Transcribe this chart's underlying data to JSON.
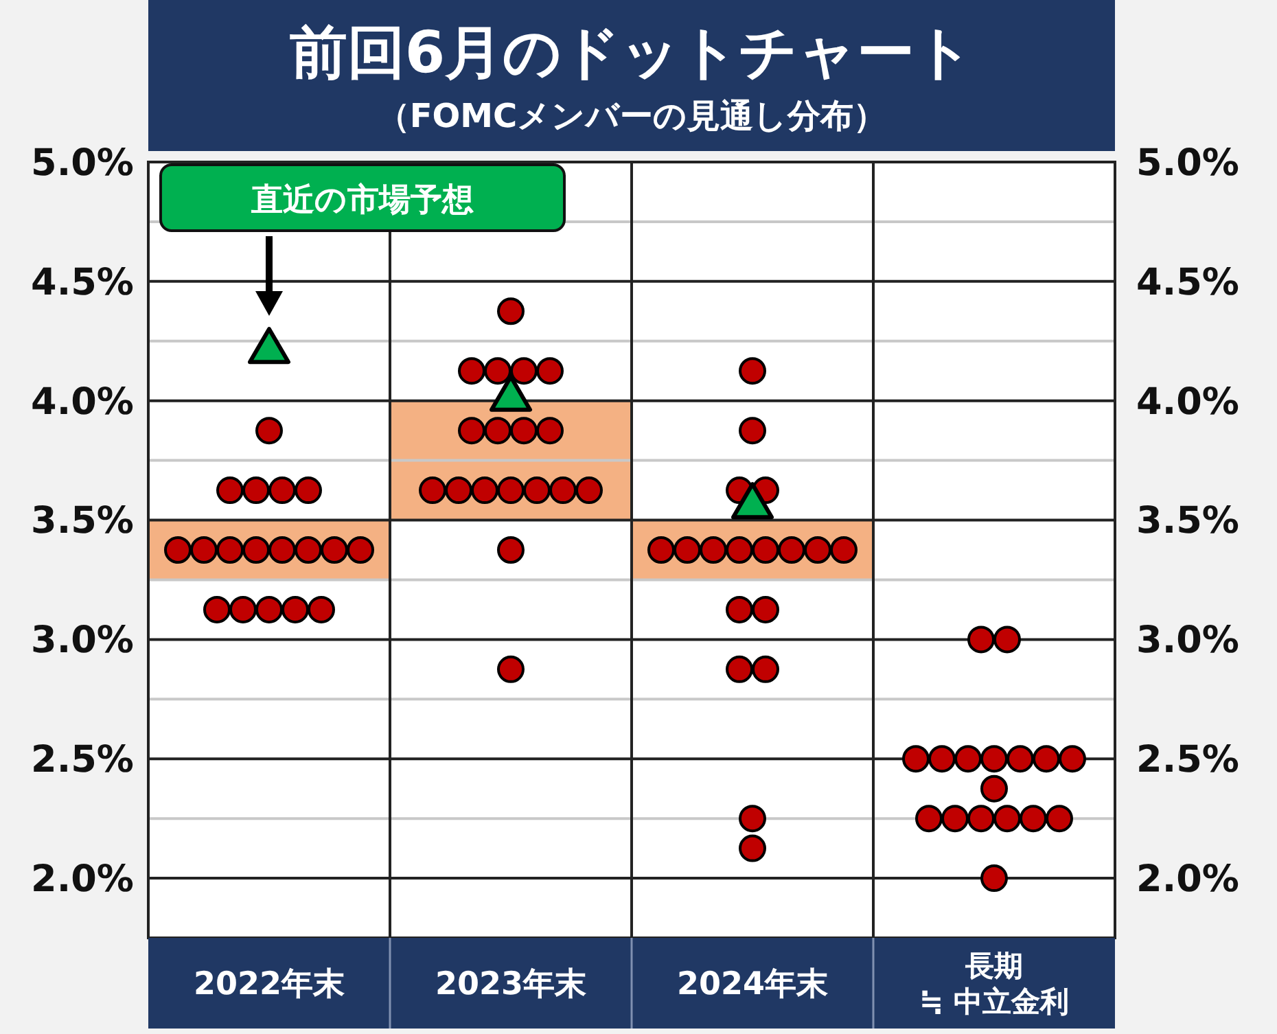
{
  "chart_data": {
    "type": "scatter",
    "title": "前回6月のドットチャート",
    "subtitle": "（FOMCメンバーの見通し分布）",
    "categories": [
      "2022年末",
      "2023年末",
      "2024年末",
      "長期\n≒ 中立金利"
    ],
    "series": [
      {
        "type": "bar",
        "color": "#f4b183",
        "base": [
          3.25,
          3.5,
          3.25,
          null
        ],
        "values": [
          0.25,
          0.5,
          0.25,
          null
        ]
      },
      {
        "marker": "circle",
        "color": "#c00000",
        "x": [
          "2022年末",
          "2022年末",
          "2022年末",
          "2022年末",
          "2022年末",
          "2022年末",
          "2022年末",
          "2022年末",
          "2022年末",
          "2022年末",
          "2022年末",
          "2022年末",
          "2022年末",
          "2022年末",
          "2022年末",
          "2022年末",
          "2022年末",
          "2022年末",
          "2023年末",
          "2023年末",
          "2023年末",
          "2023年末",
          "2023年末",
          "2023年末",
          "2023年末",
          "2023年末",
          "2023年末",
          "2023年末",
          "2023年末",
          "2023年末",
          "2023年末",
          "2023年末",
          "2023年末",
          "2023年末",
          "2023年末",
          "2023年末",
          "2024年末",
          "2024年末",
          "2024年末",
          "2024年末",
          "2024年末",
          "2024年末",
          "2024年末",
          "2024年末",
          "2024年末",
          "2024年末",
          "2024年末",
          "2024年末",
          "2024年末",
          "2024年末",
          "2024年末",
          "2024年末",
          "2024年末",
          "2024年末",
          "長期\n≒ 中立金利",
          "長期\n≒ 中立金利",
          "長期\n≒ 中立金利",
          "長期\n≒ 中立金利",
          "長期\n≒ 中立金利",
          "長期\n≒ 中立金利",
          "長期\n≒ 中立金利",
          "長期\n≒ 中立金利",
          "長期\n≒ 中立金利",
          "長期\n≒ 中立金利",
          "長期\n≒ 中立金利",
          "長期\n≒ 中立金利",
          "長期\n≒ 中立金利",
          "長期\n≒ 中立金利",
          "長期\n≒ 中立金利",
          "長期\n≒ 中立金利",
          "長期\n≒ 中立金利"
        ],
        "values": [
          3.875,
          3.625,
          3.625,
          3.625,
          3.625,
          3.375,
          3.375,
          3.375,
          3.375,
          3.375,
          3.375,
          3.375,
          3.375,
          3.125,
          3.125,
          3.125,
          3.125,
          3.125,
          4.375,
          4.125,
          4.125,
          4.125,
          4.125,
          3.875,
          3.875,
          3.875,
          3.875,
          3.625,
          3.625,
          3.625,
          3.625,
          3.625,
          3.625,
          3.625,
          3.375,
          2.875,
          4.125,
          3.875,
          3.625,
          3.625,
          3.375,
          3.375,
          3.375,
          3.375,
          3.375,
          3.375,
          3.375,
          3.375,
          3.125,
          3.125,
          2.875,
          2.875,
          2.25,
          2.125,
          3.0,
          3.0,
          2.5,
          2.5,
          2.5,
          2.5,
          2.5,
          2.5,
          2.5,
          2.375,
          2.25,
          2.25,
          2.25,
          2.25,
          2.25,
          2.25,
          2.0
        ]
      },
      {
        "type": "scatter",
        "marker": "triangle",
        "color": "#00b050",
        "x": [
          "2022年末",
          "2023年末",
          "2024年末"
        ],
        "values": [
          4.22,
          4.02,
          3.57
        ]
      }
    ],
    "annotations": [
      "直近の市場予想"
    ],
    "ylim": [
      1.75,
      5.0
    ],
    "yticks": [
      {
        "value": 2.0,
        "label": "2.0%"
      },
      {
        "value": 2.25,
        "label": null
      },
      {
        "value": 2.5,
        "label": "2.5%"
      },
      {
        "value": 2.75,
        "label": null
      },
      {
        "value": 3.0,
        "label": "3.0%"
      },
      {
        "value": 3.25,
        "label": null
      },
      {
        "value": 3.5,
        "label": "3.5%"
      },
      {
        "value": 3.75,
        "label": null
      },
      {
        "value": 4.0,
        "label": "4.0%"
      },
      {
        "value": 4.25,
        "label": null
      },
      {
        "value": 4.5,
        "label": "4.5%"
      },
      {
        "value": 4.75,
        "label": null
      },
      {
        "value": 5.0,
        "label": "5.0%"
      }
    ],
    "y2lim": [
      1.75,
      5.0
    ],
    "y2ticks": [
      {
        "value": 2.0,
        "label": "2.0%"
      },
      {
        "value": 2.25,
        "label": null
      },
      {
        "value": 2.5,
        "label": "2.5%"
      },
      {
        "value": 2.75,
        "label": null
      },
      {
        "value": 3.0,
        "label": "3.0%"
      },
      {
        "value": 3.25,
        "label": null
      },
      {
        "value": 3.5,
        "label": "3.5%"
      },
      {
        "value": 3.75,
        "label": null
      },
      {
        "value": 4.0,
        "label": "4.0%"
      },
      {
        "value": 4.25,
        "label": null
      },
      {
        "value": 4.5,
        "label": "4.5%"
      },
      {
        "value": 4.75,
        "label": null
      },
      {
        "value": 5.0,
        "label": "5.0%"
      }
    ],
    "grid": true
  }
}
